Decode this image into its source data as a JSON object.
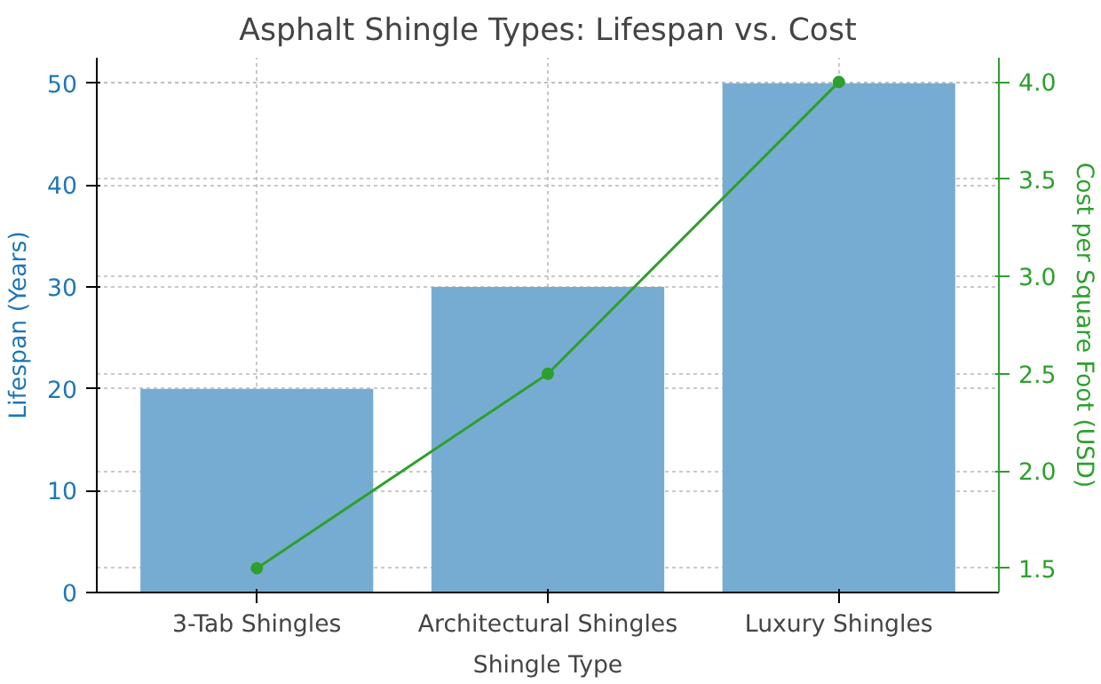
{
  "chart_data": {
    "type": "bar",
    "title": "Asphalt Shingle Types: Lifespan vs. Cost",
    "xlabel": "Shingle Type",
    "ylabel": "Lifespan (Years)",
    "y2label": "Cost per Square Foot (USD)",
    "categories": [
      "3-Tab Shingles",
      "Architectural Shingles",
      "Luxury Shingles"
    ],
    "series": [
      {
        "color": "#77acd2",
        "values": [
          20,
          30,
          50
        ]
      },
      {
        "type": "line",
        "axis": "y2",
        "color": "#2ca02c",
        "values": [
          1.5,
          2.5,
          4.0
        ],
        "marker": "circle"
      }
    ],
    "ylim": [
      0,
      52.5
    ],
    "yticks": [
      0,
      10,
      20,
      30,
      40,
      50
    ],
    "y2lim": [
      1.375,
      4.125
    ],
    "y2ticks": [
      1.5,
      {
        "value": 2,
        "label": "2.0"
      },
      2.5,
      {
        "value": 3,
        "label": "3.0"
      },
      3.5,
      {
        "value": 4,
        "label": "4.0"
      }
    ],
    "grid": true
  }
}
